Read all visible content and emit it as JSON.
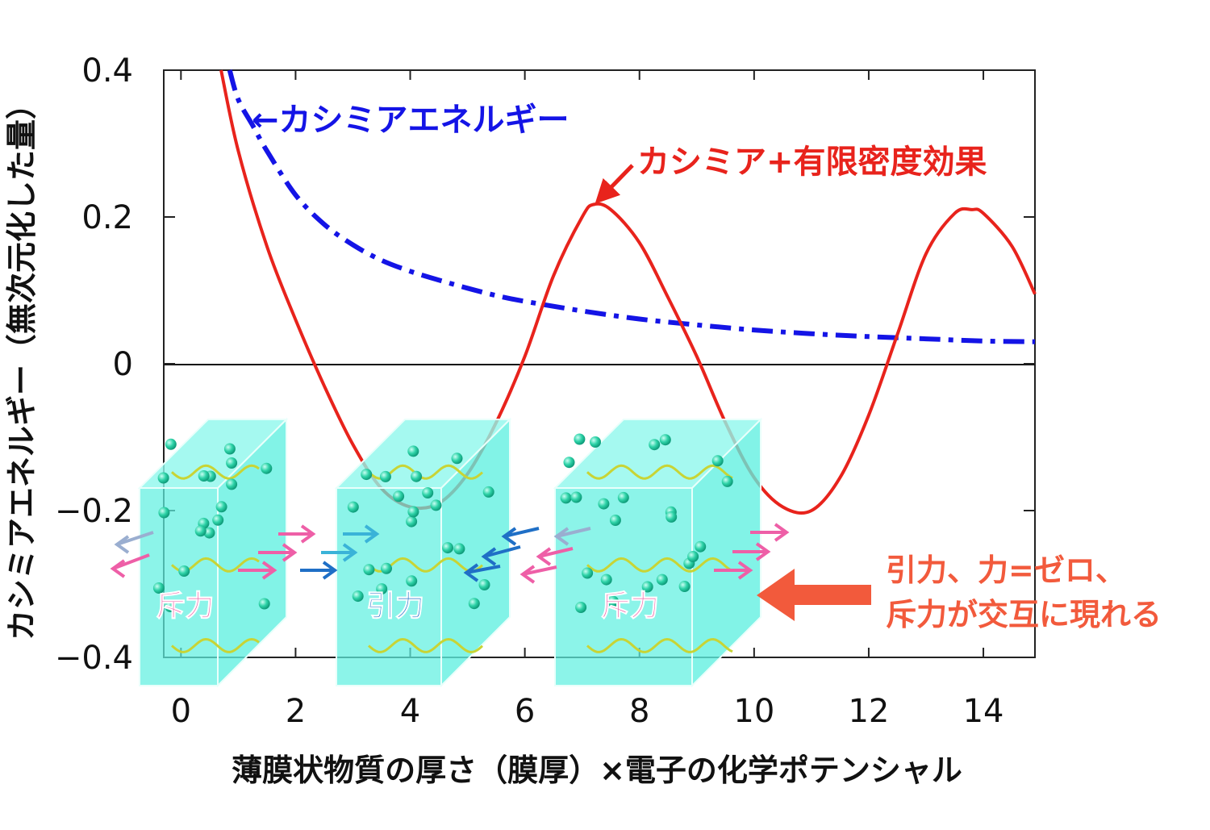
{
  "chart_data": {
    "type": "line",
    "xlabel": "薄膜状物質の厚さ（膜厚）×電子の化学ポテンシャル",
    "ylabel": "カシミアエネルギー（無次元化した量）",
    "xlim": [
      -0.3,
      14.9
    ],
    "ylim": [
      -0.4,
      0.4
    ],
    "x_ticks": [
      0,
      2,
      4,
      6,
      8,
      10,
      12,
      14
    ],
    "x_tick_labels": [
      "0",
      "2",
      "4",
      "6",
      "8",
      "10",
      "12",
      "14"
    ],
    "y_ticks": [
      -0.4,
      -0.2,
      0,
      0.2,
      0.4
    ],
    "y_tick_labels": [
      "−0.4",
      "−0.2",
      "0",
      "0.2",
      "0.4"
    ],
    "grid": false,
    "series": [
      {
        "name": "カシミアエネルギー",
        "color": "#1414e6",
        "style": "dash-dot",
        "x": [
          0.85,
          1,
          1.25,
          1.5,
          2,
          2.5,
          3,
          3.5,
          4,
          4.5,
          5,
          5.5,
          6,
          7,
          8,
          9,
          10,
          11,
          12,
          13,
          14,
          14.9
        ],
        "y": [
          0.4,
          0.36,
          0.325,
          0.29,
          0.23,
          0.19,
          0.162,
          0.141,
          0.126,
          0.114,
          0.103,
          0.093,
          0.085,
          0.072,
          0.061,
          0.053,
          0.046,
          0.041,
          0.037,
          0.034,
          0.031,
          0.03
        ]
      },
      {
        "name": "カシミア+有限密度効果",
        "color": "#e8231c",
        "style": "solid",
        "x": [
          0.7,
          1,
          1.5,
          2,
          2.5,
          3,
          3.5,
          4,
          4.5,
          5,
          5.5,
          6,
          6.5,
          7,
          7.2,
          7.5,
          8,
          8.5,
          9,
          9.5,
          10,
          10.5,
          11,
          11.5,
          12,
          12.5,
          13,
          13.5,
          13.8,
          14,
          14.5,
          14.9
        ],
        "y": [
          0.4,
          0.29,
          0.16,
          0.06,
          -0.03,
          -0.11,
          -0.17,
          -0.195,
          -0.19,
          -0.15,
          -0.08,
          0.01,
          0.12,
          0.2,
          0.217,
          0.21,
          0.165,
          0.09,
          0.01,
          -0.08,
          -0.155,
          -0.195,
          -0.2,
          -0.155,
          -0.07,
          0.04,
          0.15,
          0.205,
          0.21,
          0.205,
          0.16,
          0.095
        ]
      }
    ],
    "annotations": {
      "blue_label": "←カシミアエネルギー",
      "red_label": "カシミア+有限密度効果",
      "result_line1": "引力、力=ゼロ、",
      "result_line2": "斥力が交互に現れる",
      "box1_label": "斥力",
      "box2_label": "引力",
      "box3_label": "斥力"
    },
    "colors": {
      "blue": "#1414e6",
      "red": "#e8231c",
      "annotation_orange": "#f25a3c",
      "box_fill": "#5ff0e0",
      "box_top": "#8ff7ec",
      "repulse_arrow": "#ee5fa7",
      "attract_arrow": "#1f6fc6",
      "wave": "#c8d435"
    }
  }
}
